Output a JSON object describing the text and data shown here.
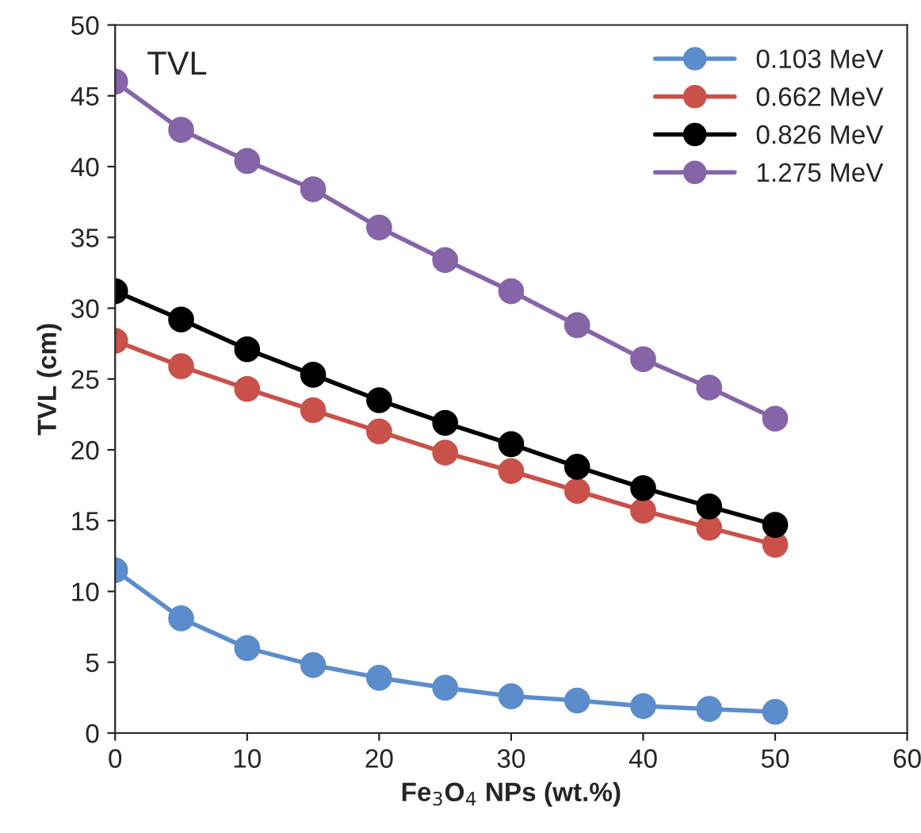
{
  "chart_data": {
    "type": "line",
    "x": [
      0,
      5,
      10,
      15,
      20,
      25,
      30,
      35,
      40,
      45,
      50
    ],
    "series": [
      {
        "name": "0.103 MeV",
        "color": "#5b8ccc",
        "values": [
          11.5,
          8.1,
          6.0,
          4.8,
          3.9,
          3.2,
          2.6,
          2.3,
          1.9,
          1.7,
          1.5
        ]
      },
      {
        "name": "0.662 MeV",
        "color": "#c9514a",
        "values": [
          27.7,
          25.9,
          24.3,
          22.8,
          21.3,
          19.8,
          18.5,
          17.1,
          15.7,
          14.5,
          13.3
        ]
      },
      {
        "name": "0.826 MeV",
        "color": "#000000",
        "values": [
          31.2,
          29.2,
          27.1,
          25.3,
          23.5,
          21.9,
          20.4,
          18.8,
          17.3,
          16.0,
          14.7
        ]
      },
      {
        "name": "1.275 MeV",
        "color": "#8664a8",
        "values": [
          46.0,
          42.6,
          40.4,
          38.4,
          35.7,
          33.4,
          31.2,
          28.8,
          26.4,
          24.4,
          22.2
        ]
      }
    ],
    "xlabel": "Fe$_{3}$O$_{4}$ NPs (wt.%)",
    "ylabel": "TVL (cm)",
    "annotations": [
      "TVL"
    ],
    "xlim": [
      0,
      60
    ],
    "xticks": [
      0,
      10,
      20,
      30,
      40,
      50,
      60
    ],
    "ylim": [
      0,
      50
    ],
    "yticks": [
      0,
      5,
      10,
      15,
      20,
      25,
      30,
      35,
      40,
      45,
      50
    ],
    "grid": false,
    "legend": "top right",
    "marker": "circle",
    "line_style": "solid"
  }
}
